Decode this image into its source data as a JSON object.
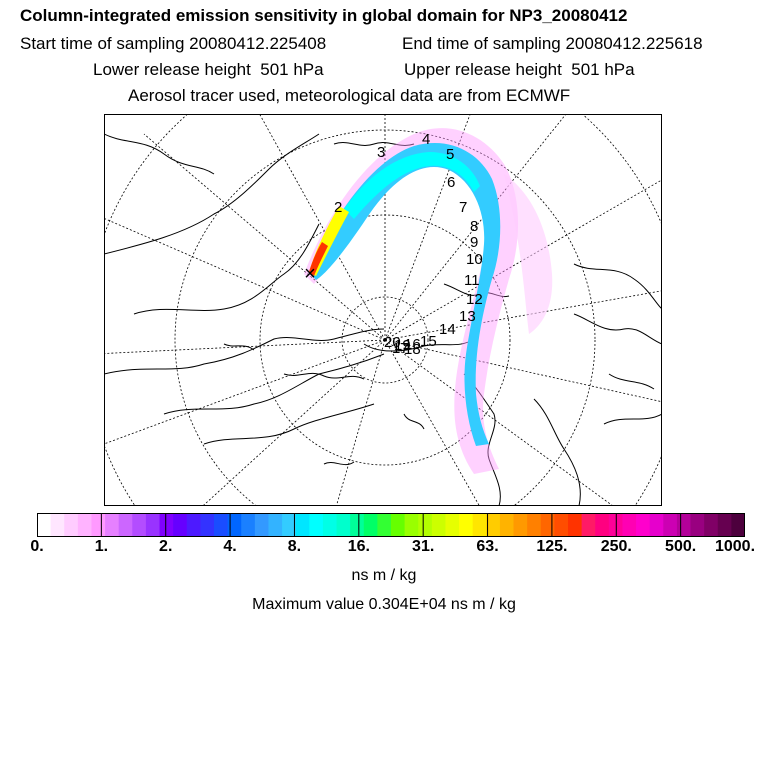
{
  "header": {
    "title": "Column-integrated emission sensitivity in global domain for NP3_20080412",
    "start": "Start time of sampling 20080412.225408",
    "end": "End time of sampling 20080412.225618",
    "lower": "Lower release height  501 hPa",
    "upper": "Upper release height  501 hPa",
    "tracer": "Aerosol tracer used, meteorological data are from ECMWF"
  },
  "map": {
    "projection": "polar stereographic (north pole)",
    "release_marker": "×",
    "day_labels": [
      "2",
      "3",
      "4",
      "5",
      "6",
      "7",
      "8",
      "9",
      "10",
      "11",
      "12",
      "13",
      "14",
      "15",
      "16",
      "17",
      "18",
      "19",
      "20"
    ]
  },
  "colorbar": {
    "colors": [
      "#ffffff",
      "#ffe6ff",
      "#ffccff",
      "#ffb3ff",
      "#ff99ff",
      "#e680ff",
      "#cc66ff",
      "#b34dff",
      "#9933ff",
      "#8000ff",
      "#6600ff",
      "#4d1aff",
      "#3333ff",
      "#1a4dff",
      "#0066ff",
      "#1a80ff",
      "#3399ff",
      "#33b3ff",
      "#33ccff",
      "#00e6ff",
      "#00ffff",
      "#00ffe6",
      "#00ffcc",
      "#00ff99",
      "#00ff66",
      "#33ff33",
      "#66ff00",
      "#99ff00",
      "#b3ff00",
      "#ccff00",
      "#e6ff00",
      "#ffff00",
      "#ffe600",
      "#ffcc00",
      "#ffb300",
      "#ff9900",
      "#ff8000",
      "#ff6600",
      "#ff4d00",
      "#ff3300",
      "#ff1a66",
      "#ff0080",
      "#ff0099",
      "#ff00b3",
      "#ff00cc",
      "#e600cc",
      "#cc00b3",
      "#b30099",
      "#990080",
      "#800066",
      "#660050",
      "#4d003d"
    ],
    "tick_labels": [
      "0.",
      "1.",
      "2.",
      "4.",
      "8.",
      "16.",
      "31.",
      "63.",
      "125.",
      "250.",
      "500.",
      "1000."
    ],
    "units": "ns m / kg",
    "maximum": "Maximum value  0.304E+04 ns m / kg"
  }
}
